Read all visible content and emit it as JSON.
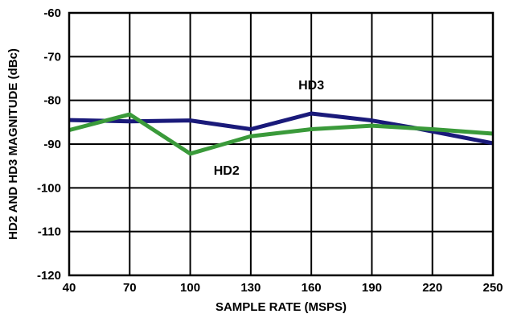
{
  "chart_data": {
    "type": "line",
    "xlabel": "SAMPLE RATE (MSPS)",
    "ylabel": "HD2 AND HD3 MAGNITUDE (dBc)",
    "x_ticks": [
      40,
      70,
      100,
      130,
      160,
      190,
      220,
      250
    ],
    "y_ticks": [
      -60,
      -70,
      -80,
      -90,
      -100,
      -110,
      -120
    ],
    "xlim": [
      40,
      250
    ],
    "ylim": [
      -120,
      -60
    ],
    "grid": true,
    "series": [
      {
        "name": "HD3",
        "color": "#1a1a7a",
        "x": [
          40,
          70,
          100,
          130,
          160,
          190,
          210,
          250
        ],
        "y": [
          -84.5,
          -84.8,
          -84.6,
          -86.6,
          -83.0,
          -84.6,
          -86.2,
          -89.8
        ]
      },
      {
        "name": "HD2",
        "color": "#3a9a3a",
        "x": [
          40,
          70,
          100,
          130,
          160,
          190,
          220,
          250
        ],
        "y": [
          -86.8,
          -83.2,
          -92.2,
          -88.2,
          -86.6,
          -85.8,
          -86.6,
          -87.6
        ]
      }
    ],
    "annotations": [
      {
        "text": "HD3",
        "x": 160,
        "y": -77.5
      },
      {
        "text": "HD2",
        "x": 118,
        "y": -97
      }
    ]
  }
}
